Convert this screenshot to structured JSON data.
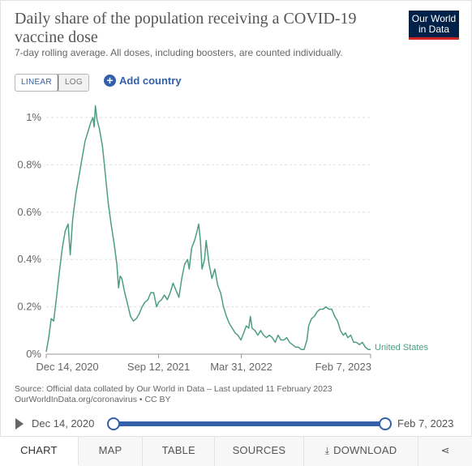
{
  "header": {
    "title": "Daily share of the population receiving a COVID-19 vaccine dose",
    "subtitle": "7-day rolling average. All doses, including boosters, are counted individually.",
    "logo_line1": "Our World",
    "logo_line2": "in Data",
    "logo_bg": "#002147",
    "logo_accent": "#ce261e"
  },
  "controls": {
    "scale_linear": "LINEAR",
    "scale_log": "LOG",
    "selected_scale": "LINEAR",
    "add_country": "Add country"
  },
  "chart_data": {
    "type": "line",
    "y_ticks": [
      "0%",
      "0.2%",
      "0.4%",
      "0.6%",
      "0.8%",
      "1%"
    ],
    "y_tick_values": [
      0,
      0.2,
      0.4,
      0.6,
      0.8,
      1.0
    ],
    "ylim": [
      0,
      1.0
    ],
    "x_tick_labels": [
      "Dec 14, 2020",
      "Sep 12, 2021",
      "Mar 31, 2022",
      "Feb 7, 2023"
    ],
    "x_tick_dates": [
      "2020-12-14",
      "2021-09-12",
      "2022-03-31",
      "2023-02-07"
    ],
    "grid": true,
    "line_color": "#4c9e7f",
    "series": [
      {
        "name": "United States",
        "points": [
          [
            "2020-12-14",
            0.01
          ],
          [
            "2020-12-20",
            0.07
          ],
          [
            "2020-12-26",
            0.15
          ],
          [
            "2021-01-01",
            0.14
          ],
          [
            "2021-01-08",
            0.24
          ],
          [
            "2021-01-15",
            0.35
          ],
          [
            "2021-01-22",
            0.45
          ],
          [
            "2021-01-29",
            0.52
          ],
          [
            "2021-02-05",
            0.55
          ],
          [
            "2021-02-10",
            0.42
          ],
          [
            "2021-02-16",
            0.57
          ],
          [
            "2021-02-24",
            0.68
          ],
          [
            "2021-03-03",
            0.75
          ],
          [
            "2021-03-10",
            0.82
          ],
          [
            "2021-03-18",
            0.9
          ],
          [
            "2021-03-25",
            0.94
          ],
          [
            "2021-04-01",
            0.98
          ],
          [
            "2021-04-06",
            1.0
          ],
          [
            "2021-04-09",
            0.96
          ],
          [
            "2021-04-12",
            1.05
          ],
          [
            "2021-04-16",
            0.99
          ],
          [
            "2021-04-22",
            0.95
          ],
          [
            "2021-04-29",
            0.88
          ],
          [
            "2021-05-06",
            0.76
          ],
          [
            "2021-05-13",
            0.64
          ],
          [
            "2021-05-20",
            0.55
          ],
          [
            "2021-05-27",
            0.47
          ],
          [
            "2021-06-03",
            0.38
          ],
          [
            "2021-06-07",
            0.28
          ],
          [
            "2021-06-11",
            0.33
          ],
          [
            "2021-06-15",
            0.32
          ],
          [
            "2021-06-22",
            0.26
          ],
          [
            "2021-06-29",
            0.21
          ],
          [
            "2021-07-06",
            0.16
          ],
          [
            "2021-07-13",
            0.14
          ],
          [
            "2021-07-20",
            0.15
          ],
          [
            "2021-07-27",
            0.17
          ],
          [
            "2021-08-03",
            0.2
          ],
          [
            "2021-08-10",
            0.22
          ],
          [
            "2021-08-17",
            0.23
          ],
          [
            "2021-08-24",
            0.26
          ],
          [
            "2021-08-31",
            0.26
          ],
          [
            "2021-09-07",
            0.2
          ],
          [
            "2021-09-12",
            0.22
          ],
          [
            "2021-09-19",
            0.23
          ],
          [
            "2021-09-26",
            0.25
          ],
          [
            "2021-10-03",
            0.23
          ],
          [
            "2021-10-10",
            0.26
          ],
          [
            "2021-10-17",
            0.3
          ],
          [
            "2021-10-24",
            0.27
          ],
          [
            "2021-10-31",
            0.24
          ],
          [
            "2021-11-07",
            0.32
          ],
          [
            "2021-11-14",
            0.38
          ],
          [
            "2021-11-21",
            0.4
          ],
          [
            "2021-11-25",
            0.36
          ],
          [
            "2021-12-01",
            0.45
          ],
          [
            "2021-12-08",
            0.48
          ],
          [
            "2021-12-14",
            0.52
          ],
          [
            "2021-12-18",
            0.55
          ],
          [
            "2021-12-22",
            0.48
          ],
          [
            "2021-12-26",
            0.36
          ],
          [
            "2022-01-01",
            0.4
          ],
          [
            "2022-01-05",
            0.48
          ],
          [
            "2022-01-12",
            0.38
          ],
          [
            "2022-01-19",
            0.32
          ],
          [
            "2022-01-26",
            0.36
          ],
          [
            "2022-02-02",
            0.29
          ],
          [
            "2022-02-09",
            0.26
          ],
          [
            "2022-02-16",
            0.2
          ],
          [
            "2022-02-23",
            0.16
          ],
          [
            "2022-03-02",
            0.13
          ],
          [
            "2022-03-09",
            0.11
          ],
          [
            "2022-03-16",
            0.09
          ],
          [
            "2022-03-23",
            0.08
          ],
          [
            "2022-03-30",
            0.06
          ],
          [
            "2022-04-06",
            0.09
          ],
          [
            "2022-04-12",
            0.12
          ],
          [
            "2022-04-18",
            0.11
          ],
          [
            "2022-04-22",
            0.16
          ],
          [
            "2022-04-26",
            0.11
          ],
          [
            "2022-05-03",
            0.1
          ],
          [
            "2022-05-10",
            0.08
          ],
          [
            "2022-05-17",
            0.1
          ],
          [
            "2022-05-24",
            0.08
          ],
          [
            "2022-05-31",
            0.07
          ],
          [
            "2022-06-07",
            0.08
          ],
          [
            "2022-06-14",
            0.07
          ],
          [
            "2022-06-21",
            0.05
          ],
          [
            "2022-06-28",
            0.08
          ],
          [
            "2022-07-05",
            0.06
          ],
          [
            "2022-07-12",
            0.06
          ],
          [
            "2022-07-19",
            0.07
          ],
          [
            "2022-07-26",
            0.05
          ],
          [
            "2022-08-02",
            0.04
          ],
          [
            "2022-08-09",
            0.03
          ],
          [
            "2022-08-16",
            0.03
          ],
          [
            "2022-08-23",
            0.02
          ],
          [
            "2022-08-30",
            0.02
          ],
          [
            "2022-09-06",
            0.06
          ],
          [
            "2022-09-10",
            0.12
          ],
          [
            "2022-09-17",
            0.15
          ],
          [
            "2022-09-24",
            0.16
          ],
          [
            "2022-10-01",
            0.18
          ],
          [
            "2022-10-08",
            0.19
          ],
          [
            "2022-10-15",
            0.19
          ],
          [
            "2022-10-22",
            0.2
          ],
          [
            "2022-10-29",
            0.19
          ],
          [
            "2022-11-05",
            0.19
          ],
          [
            "2022-11-12",
            0.16
          ],
          [
            "2022-11-19",
            0.14
          ],
          [
            "2022-11-26",
            0.1
          ],
          [
            "2022-12-03",
            0.08
          ],
          [
            "2022-12-08",
            0.09
          ],
          [
            "2022-12-14",
            0.07
          ],
          [
            "2022-12-21",
            0.08
          ],
          [
            "2022-12-28",
            0.05
          ],
          [
            "2023-01-04",
            0.05
          ],
          [
            "2023-01-11",
            0.04
          ],
          [
            "2023-01-18",
            0.05
          ],
          [
            "2023-01-25",
            0.03
          ],
          [
            "2023-02-01",
            0.02
          ],
          [
            "2023-02-07",
            0.02
          ]
        ]
      }
    ]
  },
  "source": {
    "line1": "Source: Official data collated by Our World in Data – Last updated 11 February 2023",
    "line2": "OurWorldInData.org/coronavirus • CC BY"
  },
  "timeline": {
    "start": "Dec 14, 2020",
    "end": "Feb 7, 2023"
  },
  "tabs": {
    "chart": "CHART",
    "map": "MAP",
    "table": "TABLE",
    "sources": "SOURCES",
    "download": "DOWNLOAD",
    "active": "CHART"
  }
}
